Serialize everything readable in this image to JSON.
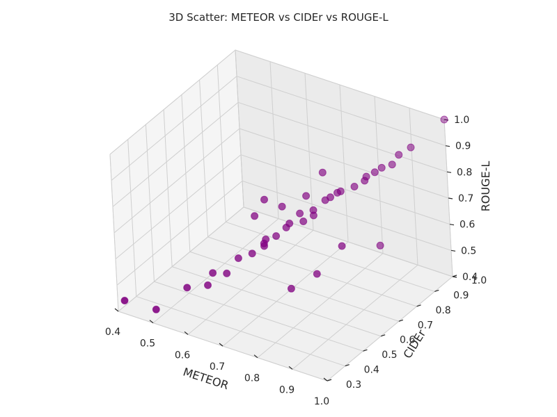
{
  "chart_data": {
    "type": "scatter",
    "projection": "3d",
    "title": "3D Scatter: METEOR vs CIDEr vs ROUGE-L",
    "xlabel": "METEOR",
    "ylabel": "CIDEr",
    "zlabel": "ROUGE-L",
    "xlim": [
      0.4,
      1.0
    ],
    "ylim": [
      0.3,
      1.0
    ],
    "zlim": [
      0.4,
      1.0
    ],
    "xticks": [
      "0.4",
      "0.5",
      "0.6",
      "0.7",
      "0.8",
      "0.9",
      "1.0"
    ],
    "yticks": [
      "0.3",
      "0.4",
      "0.5",
      "0.6",
      "0.7",
      "0.8",
      "0.9",
      "1.0"
    ],
    "zticks": [
      "0.4",
      "0.5",
      "0.6",
      "0.7",
      "0.8",
      "0.9",
      "1.0"
    ],
    "grid": true,
    "marker_color": "#800080",
    "pane_color": "#f1f1f1",
    "grid_color": "#cfcfcf",
    "points": [
      {
        "x": 1.0,
        "y": 1.0,
        "z": 1.0
      },
      {
        "x": 0.42,
        "y": 0.3,
        "z": 0.45
      },
      {
        "x": 0.5,
        "y": 0.32,
        "z": 0.44
      },
      {
        "x": 0.55,
        "y": 0.4,
        "z": 0.5
      },
      {
        "x": 0.6,
        "y": 0.42,
        "z": 0.52
      },
      {
        "x": 0.6,
        "y": 0.45,
        "z": 0.55
      },
      {
        "x": 0.63,
        "y": 0.47,
        "z": 0.55
      },
      {
        "x": 0.65,
        "y": 0.5,
        "z": 0.6
      },
      {
        "x": 0.68,
        "y": 0.52,
        "z": 0.62
      },
      {
        "x": 0.7,
        "y": 0.55,
        "z": 0.64
      },
      {
        "x": 0.7,
        "y": 0.55,
        "z": 0.65
      },
      {
        "x": 0.72,
        "y": 0.58,
        "z": 0.67
      },
      {
        "x": 0.74,
        "y": 0.6,
        "z": 0.7
      },
      {
        "x": 0.75,
        "y": 0.6,
        "z": 0.72
      },
      {
        "x": 0.78,
        "y": 0.62,
        "z": 0.73
      },
      {
        "x": 0.8,
        "y": 0.64,
        "z": 0.75
      },
      {
        "x": 0.8,
        "y": 0.64,
        "z": 0.77
      },
      {
        "x": 0.82,
        "y": 0.67,
        "z": 0.8
      },
      {
        "x": 0.83,
        "y": 0.68,
        "z": 0.81
      },
      {
        "x": 0.84,
        "y": 0.7,
        "z": 0.82
      },
      {
        "x": 0.85,
        "y": 0.7,
        "z": 0.83
      },
      {
        "x": 0.88,
        "y": 0.72,
        "z": 0.85
      },
      {
        "x": 0.9,
        "y": 0.74,
        "z": 0.87
      },
      {
        "x": 0.9,
        "y": 0.75,
        "z": 0.88
      },
      {
        "x": 0.92,
        "y": 0.76,
        "z": 0.9
      },
      {
        "x": 0.93,
        "y": 0.78,
        "z": 0.91
      },
      {
        "x": 0.95,
        "y": 0.8,
        "z": 0.92
      },
      {
        "x": 0.96,
        "y": 0.82,
        "z": 0.95
      },
      {
        "x": 0.98,
        "y": 0.85,
        "z": 0.97
      },
      {
        "x": 0.7,
        "y": 0.56,
        "z": 0.66
      },
      {
        "x": 0.8,
        "y": 0.7,
        "z": 0.88
      },
      {
        "x": 0.77,
        "y": 0.66,
        "z": 0.8
      },
      {
        "x": 0.85,
        "y": 0.55,
        "z": 0.6
      },
      {
        "x": 0.9,
        "y": 0.6,
        "z": 0.7
      },
      {
        "x": 0.93,
        "y": 0.75,
        "z": 0.63
      },
      {
        "x": 0.8,
        "y": 0.5,
        "z": 0.55
      },
      {
        "x": 0.68,
        "y": 0.6,
        "z": 0.78
      },
      {
        "x": 0.72,
        "y": 0.62,
        "z": 0.76
      },
      {
        "x": 0.66,
        "y": 0.58,
        "z": 0.72
      },
      {
        "x": 0.76,
        "y": 0.64,
        "z": 0.74
      }
    ]
  }
}
